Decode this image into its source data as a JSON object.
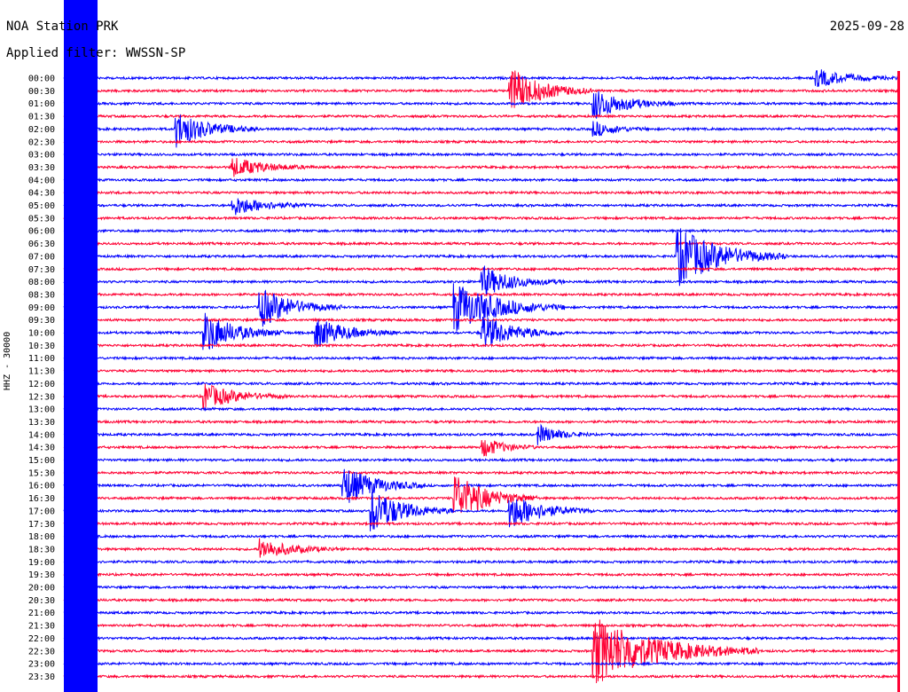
{
  "header": {
    "title": "NOA Station PRK",
    "date": "2025-09-28",
    "filter": "Applied filter: WWSSN-SP"
  },
  "ylabel": "HHZ - 30000",
  "colors": {
    "blue": "#0000ff",
    "red": "#ff0033",
    "background": "#ffffff"
  },
  "chart_data": {
    "type": "line",
    "description_of_axes": "helicorder",
    "hour_labels": [
      "00:00",
      "00:30",
      "01:00",
      "01:30",
      "02:00",
      "02:30",
      "03:00",
      "03:30",
      "04:00",
      "04:30",
      "05:00",
      "05:30",
      "06:00",
      "06:30",
      "07:00",
      "07:30",
      "08:00",
      "08:30",
      "09:00",
      "09:30",
      "10:00",
      "10:30",
      "11:00",
      "11:30",
      "12:00",
      "12:30",
      "13:00",
      "13:30",
      "14:00",
      "14:30",
      "15:00",
      "15:30",
      "16:00",
      "16:30",
      "17:00",
      "17:30",
      "18:00",
      "18:30",
      "19:00",
      "19:30",
      "20:00",
      "20:30",
      "21:00",
      "21:30",
      "22:00",
      "22:30",
      "23:00",
      "23:30"
    ],
    "trace_colors": [
      "blue",
      "red"
    ],
    "events": [
      {
        "row": 0,
        "minute": 27,
        "amp": 1.8,
        "dur": 3
      },
      {
        "row": 1,
        "minute": 16,
        "amp": 4.5,
        "dur": 3
      },
      {
        "row": 2,
        "minute": 19,
        "amp": 3.0,
        "dur": 3
      },
      {
        "row": 4,
        "minute": 4,
        "amp": 3.5,
        "dur": 3
      },
      {
        "row": 4,
        "minute": 19,
        "amp": 1.5,
        "dur": 2
      },
      {
        "row": 7,
        "minute": 6,
        "amp": 2.0,
        "dur": 3
      },
      {
        "row": 10,
        "minute": 6,
        "amp": 2.0,
        "dur": 3
      },
      {
        "row": 14,
        "minute": 22,
        "amp": 6.0,
        "dur": 4
      },
      {
        "row": 16,
        "minute": 15,
        "amp": 3.0,
        "dur": 3
      },
      {
        "row": 18,
        "minute": 7,
        "amp": 4.0,
        "dur": 3
      },
      {
        "row": 18,
        "minute": 14,
        "amp": 5.0,
        "dur": 4
      },
      {
        "row": 20,
        "minute": 5,
        "amp": 4.0,
        "dur": 3
      },
      {
        "row": 20,
        "minute": 9,
        "amp": 3.0,
        "dur": 3
      },
      {
        "row": 20,
        "minute": 15,
        "amp": 3.5,
        "dur": 3
      },
      {
        "row": 25,
        "minute": 5,
        "amp": 2.5,
        "dur": 3
      },
      {
        "row": 28,
        "minute": 17,
        "amp": 2.0,
        "dur": 2
      },
      {
        "row": 29,
        "minute": 15,
        "amp": 2.0,
        "dur": 2
      },
      {
        "row": 32,
        "minute": 10,
        "amp": 4.0,
        "dur": 3
      },
      {
        "row": 33,
        "minute": 14,
        "amp": 5.0,
        "dur": 3
      },
      {
        "row": 34,
        "minute": 11,
        "amp": 4.5,
        "dur": 3
      },
      {
        "row": 34,
        "minute": 16,
        "amp": 3.5,
        "dur": 3
      },
      {
        "row": 37,
        "minute": 7,
        "amp": 2.0,
        "dur": 3
      },
      {
        "row": 45,
        "minute": 19,
        "amp": 6.5,
        "dur": 6
      }
    ]
  }
}
